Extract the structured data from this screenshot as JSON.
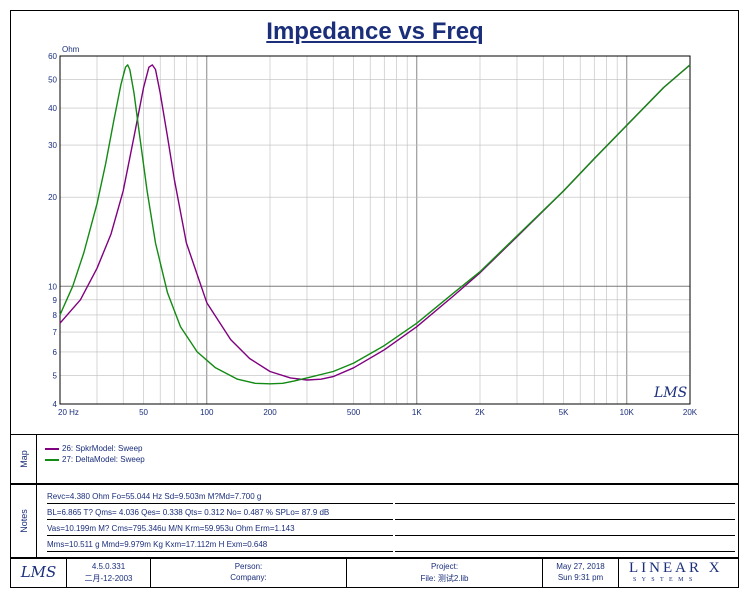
{
  "chart_data": {
    "type": "line",
    "title": "Impedance vs Freq",
    "ylabel": "Ohm",
    "xscale": "log",
    "yscale": "log",
    "xlim": [
      20,
      20000
    ],
    "ylim": [
      4,
      60
    ],
    "x_ticks": [
      {
        "value": 20,
        "label": "20  Hz"
      },
      {
        "value": 50,
        "label": "50"
      },
      {
        "value": 100,
        "label": "100"
      },
      {
        "value": 200,
        "label": "200"
      },
      {
        "value": 500,
        "label": "500"
      },
      {
        "value": 1000,
        "label": "1K"
      },
      {
        "value": 2000,
        "label": "2K"
      },
      {
        "value": 5000,
        "label": "5K"
      },
      {
        "value": 10000,
        "label": "10K"
      },
      {
        "value": 20000,
        "label": "20K"
      }
    ],
    "y_ticks": [
      {
        "value": 4,
        "label": "4"
      },
      {
        "value": 5,
        "label": "5"
      },
      {
        "value": 6,
        "label": "6"
      },
      {
        "value": 7,
        "label": "7"
      },
      {
        "value": 8,
        "label": "8"
      },
      {
        "value": 9,
        "label": "9"
      },
      {
        "value": 10,
        "label": "10"
      },
      {
        "value": 20,
        "label": "20"
      },
      {
        "value": 30,
        "label": "30"
      },
      {
        "value": 40,
        "label": "40"
      },
      {
        "value": 50,
        "label": "50"
      },
      {
        "value": 60,
        "label": "60"
      }
    ],
    "series": [
      {
        "name": "26: SpkrModel: Sweep",
        "color": "#800080",
        "x": [
          20,
          25,
          30,
          35,
          40,
          45,
          50,
          53,
          55,
          57,
          60,
          65,
          70,
          80,
          100,
          130,
          160,
          200,
          250,
          300,
          350,
          400,
          500,
          700,
          1000,
          1500,
          2000,
          3000,
          5000,
          7000,
          10000,
          15000,
          20000
        ],
        "values": [
          7.5,
          9.0,
          11.5,
          15.0,
          21.0,
          32.0,
          47.0,
          55.0,
          56.0,
          54.0,
          45.0,
          32.0,
          23.0,
          14.0,
          8.8,
          6.6,
          5.7,
          5.15,
          4.9,
          4.82,
          4.85,
          4.95,
          5.3,
          6.1,
          7.3,
          9.3,
          11.1,
          14.7,
          21.0,
          27.0,
          35.0,
          47.0,
          56.0
        ]
      },
      {
        "name": "27: DeltaModel: Sweep",
        "color": "#138a13",
        "x": [
          20,
          23,
          26,
          30,
          33,
          36,
          39,
          41,
          42,
          43,
          45,
          48,
          52,
          57,
          65,
          75,
          90,
          110,
          140,
          170,
          200,
          230,
          260,
          300,
          400,
          500,
          700,
          1000,
          1500,
          2000,
          3000,
          5000,
          7000,
          10000,
          15000,
          20000
        ],
        "values": [
          8.0,
          10.0,
          13.0,
          19.0,
          26.0,
          36.0,
          48.0,
          55.0,
          56.0,
          54.0,
          45.0,
          32.0,
          21.0,
          14.0,
          9.5,
          7.3,
          6.0,
          5.3,
          4.85,
          4.7,
          4.68,
          4.7,
          4.78,
          4.9,
          5.15,
          5.5,
          6.3,
          7.5,
          9.5,
          11.2,
          14.8,
          21.0,
          27.0,
          35.0,
          47.0,
          56.0
        ]
      }
    ],
    "annotation": "LMS"
  },
  "map": {
    "label": "Map",
    "entries": [
      {
        "text": "26: SpkrModel: Sweep",
        "color": "#800080"
      },
      {
        "text": "27: DeltaModel: Sweep",
        "color": "#138a13"
      }
    ]
  },
  "notes": {
    "label": "Notes",
    "lines": [
      "Revc=4.380 Ohm  Fo=55.044 Hz  Sd=9.503m M?Md=7.700 g",
      "BL=6.865 T?  Qms= 4.036  Qes= 0.338  Qts= 0.312  No= 0.487 %  SPLo= 87.9 dB",
      "Vas=10.199m M? Cms=795.346u M/N  Krm=59.953u Ohm  Erm=1.143",
      "Mms=10.511 g  Mmd=9.979m Kg  Kxm=17.112m H  Exm=0.648"
    ]
  },
  "footer": {
    "logo": "LMS",
    "version": "4.5.0.331",
    "version_date": "二月-12-2003",
    "person_label": "Person:",
    "company_label": "Company:",
    "project_label": "Project:",
    "file_label": "File: 测试2.lib",
    "date": "May 27, 2018",
    "time": "Sun  9:31 pm",
    "brand_top": "LINEAR X",
    "brand_bottom": "S Y S T E M S"
  }
}
